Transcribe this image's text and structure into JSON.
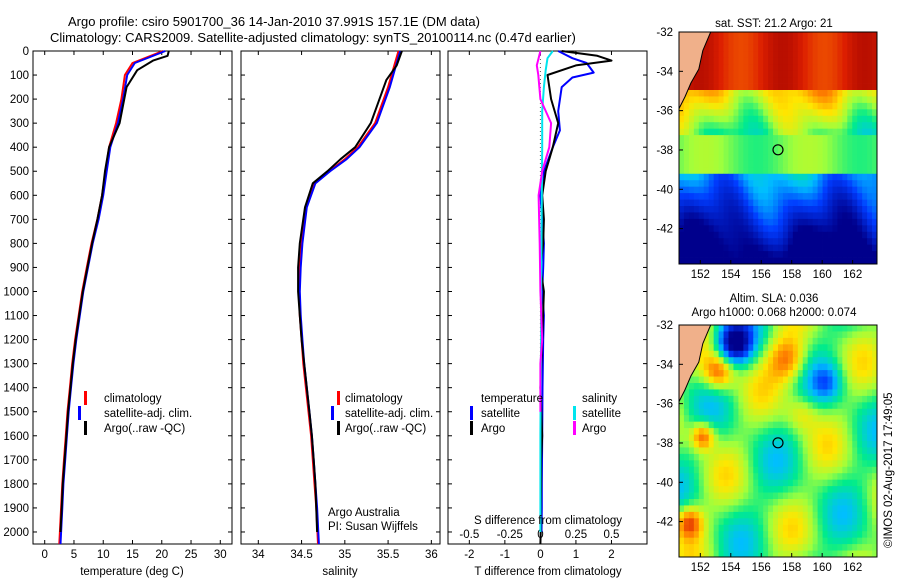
{
  "header": {
    "line1": "Argo profile: csiro 5901700_36 14-Jan-2010 37.991S 157.1E (DM data)",
    "line2": "Climatology: CARS2009. Satellite-adjusted climatology: synTS_20100114.nc (0.47d earlier)"
  },
  "colors": {
    "climatology": "#ff0000",
    "satellite": "#0000ff",
    "argo": "#000000",
    "argo_salinity": "#ff00ff",
    "satellite_salinity": "#00e5ee",
    "land": "#f0b08a"
  },
  "chart_data": [
    {
      "id": "temperature",
      "type": "line",
      "xlabel": "temperature (deg C)",
      "ylabel": "",
      "xlim": [
        -2,
        32
      ],
      "ylim": [
        2050,
        0
      ],
      "xticks": [
        0,
        5,
        10,
        15,
        20,
        25,
        30
      ],
      "yticks": [
        0,
        100,
        200,
        300,
        400,
        500,
        600,
        700,
        800,
        900,
        1000,
        1100,
        1200,
        1300,
        1400,
        1500,
        1600,
        1700,
        1800,
        1900,
        2000
      ],
      "legend": [
        "climatology",
        "satellite-adj. clim.",
        "Argo(..raw -QC)"
      ],
      "series": [
        {
          "name": "climatology",
          "color": "#ff0000",
          "x": [
            20.2,
            17.6,
            15.0,
            13.7,
            13.1,
            12.2,
            11.0,
            10.4,
            9.8,
            9.0,
            8.0,
            7.2,
            6.4,
            5.8,
            5.2,
            4.7,
            4.3,
            3.9,
            3.6,
            3.3,
            3.0,
            2.8,
            2.6,
            2.5
          ],
          "y": [
            0,
            25,
            50,
            100,
            200,
            300,
            400,
            500,
            600,
            700,
            800,
            900,
            1000,
            1100,
            1200,
            1300,
            1400,
            1500,
            1600,
            1700,
            1800,
            1900,
            2000,
            2050
          ]
        },
        {
          "name": "satellite-adj. clim.",
          "color": "#0000ff",
          "x": [
            20.6,
            18.0,
            15.4,
            14.1,
            13.4,
            12.5,
            11.2,
            10.6,
            10.0,
            9.2,
            8.2,
            7.4,
            6.6,
            6.0,
            5.4,
            4.9,
            4.5,
            4.1,
            3.8,
            3.5,
            3.2,
            3.0,
            2.8,
            2.7
          ],
          "y": [
            0,
            25,
            50,
            100,
            200,
            300,
            400,
            500,
            600,
            700,
            800,
            900,
            1000,
            1100,
            1200,
            1300,
            1400,
            1500,
            1600,
            1700,
            1800,
            1900,
            2000,
            2050
          ]
        },
        {
          "name": "Argo(..raw -QC)",
          "color": "#000000",
          "x": [
            21.2,
            21.0,
            18.5,
            15.8,
            14.0,
            12.8,
            11.0,
            10.3,
            9.8,
            9.0,
            8.1,
            7.3,
            6.5,
            5.9,
            5.3,
            4.8,
            4.4,
            4.0,
            3.7,
            3.4,
            3.1,
            2.9,
            2.7
          ],
          "y": [
            0,
            20,
            40,
            80,
            150,
            300,
            400,
            500,
            600,
            700,
            800,
            900,
            1000,
            1100,
            1200,
            1300,
            1400,
            1500,
            1600,
            1700,
            1800,
            1900,
            2000
          ]
        }
      ]
    },
    {
      "id": "salinity",
      "type": "line",
      "xlabel": "salinity",
      "ylabel": "",
      "xlim": [
        33.8,
        36.1
      ],
      "ylim": [
        2050,
        0
      ],
      "xticks": [
        34,
        34.5,
        35,
        35.5,
        36
      ],
      "legend": [
        "climatology",
        "satellite-adj. clim.",
        "Argo(..raw -QC)"
      ],
      "annotation": [
        "Argo Australia",
        "PI: Susan Wijffels"
      ],
      "series": [
        {
          "name": "climatology",
          "color": "#ff0000",
          "x": [
            35.62,
            35.58,
            35.5,
            35.35,
            35.15,
            35.0,
            34.82,
            34.65,
            34.55,
            34.5,
            34.48,
            34.47,
            34.48,
            34.5,
            34.52,
            34.55,
            34.58,
            34.61,
            34.63,
            34.65,
            34.67,
            34.69
          ],
          "y": [
            0,
            50,
            150,
            300,
            400,
            450,
            500,
            550,
            650,
            800,
            900,
            1000,
            1100,
            1200,
            1300,
            1400,
            1500,
            1600,
            1700,
            1800,
            1900,
            2050
          ]
        },
        {
          "name": "satellite-adj. clim.",
          "color": "#0000ff",
          "x": [
            35.64,
            35.6,
            35.52,
            35.37,
            35.17,
            35.02,
            34.83,
            34.66,
            34.56,
            34.51,
            34.49,
            34.48,
            34.49,
            34.51,
            34.53,
            34.56,
            34.59,
            34.62,
            34.64,
            34.66,
            34.68,
            34.7
          ],
          "y": [
            0,
            50,
            150,
            300,
            400,
            450,
            500,
            550,
            650,
            800,
            900,
            1000,
            1100,
            1200,
            1300,
            1400,
            1500,
            1600,
            1700,
            1800,
            1900,
            2050
          ]
        },
        {
          "name": "Argo(..raw -QC)",
          "color": "#000000",
          "x": [
            35.66,
            35.6,
            35.48,
            35.42,
            35.3,
            35.12,
            34.95,
            34.8,
            34.63,
            34.54,
            34.48,
            34.46,
            34.46,
            34.48,
            34.5,
            34.53,
            34.56,
            34.59,
            34.62,
            34.64,
            34.66,
            34.68
          ],
          "y": [
            0,
            60,
            120,
            180,
            300,
            400,
            450,
            500,
            550,
            650,
            800,
            900,
            1000,
            1100,
            1200,
            1300,
            1400,
            1500,
            1600,
            1700,
            1800,
            2000
          ]
        }
      ]
    },
    {
      "id": "difference",
      "type": "line",
      "xlabel": "T difference from climatology",
      "xlabel_top": "S difference from climatology",
      "xlim": [
        -2.6,
        3.0
      ],
      "ylim": [
        2050,
        0
      ],
      "xticks": [
        -2,
        -1,
        0,
        1,
        2
      ],
      "sticks": [
        "-0.5",
        "-0.25",
        "0",
        "0.25",
        "0.5"
      ],
      "legend_left_title": "temperature",
      "legend_right_title": "salinity",
      "legend_left": [
        "satellite",
        "Argo"
      ],
      "legend_right": [
        "satellite",
        "Argo"
      ],
      "series": [
        {
          "name": "satellite",
          "group": "temperature",
          "color": "#0000ff",
          "x": [
            0.5,
            0.7,
            0.9,
            1.3,
            1.5,
            0.9,
            0.6,
            0.5,
            0.55,
            0.35,
            0.1,
            0.0,
            0.05,
            0.1,
            0.08,
            0.05,
            0.1,
            0.08,
            0.06,
            0.05,
            0.04,
            0.04,
            0.03
          ],
          "y": [
            0,
            15,
            30,
            50,
            90,
            110,
            150,
            250,
            330,
            400,
            500,
            600,
            700,
            800,
            900,
            1000,
            1100,
            1200,
            1400,
            1600,
            1800,
            1900,
            2000
          ]
        },
        {
          "name": "Argo",
          "group": "temperature",
          "color": "#000000",
          "x": [
            0.6,
            1.6,
            2.0,
            1.0,
            0.2,
            0.3,
            0.5,
            0.35,
            0.15,
            0.05,
            0.1,
            0.08,
            0.0,
            0.1,
            0.05,
            0.0,
            0.05,
            0.02,
            0.02,
            0.01,
            0.01,
            0.0
          ],
          "y": [
            0,
            20,
            40,
            60,
            100,
            200,
            300,
            400,
            500,
            600,
            700,
            800,
            900,
            1000,
            1200,
            1400,
            1600,
            1700,
            1800,
            1900,
            2000,
            2050
          ]
        },
        {
          "name": "satellite",
          "group": "salinity",
          "color": "#00e5ee",
          "x": [
            0.35,
            0.2,
            0.15,
            0.1,
            0.05,
            0.05,
            0.04,
            0.03,
            0.02,
            0.02,
            0.01,
            0.0,
            0.0,
            0.0,
            0.0,
            0.0
          ],
          "y": [
            0,
            30,
            80,
            150,
            250,
            400,
            600,
            800,
            1000,
            1200,
            1400,
            1600,
            1700,
            1800,
            1900,
            2000
          ]
        },
        {
          "name": "Argo",
          "group": "salinity",
          "color": "#ff00ff",
          "x": [
            0.0,
            -0.05,
            -0.1,
            -0.06,
            0.0,
            0.3,
            0.25,
            0.05,
            -0.05,
            -0.02,
            0.0,
            0.05,
            0.0,
            0.0,
            0.0
          ],
          "y": [
            0,
            30,
            60,
            100,
            200,
            300,
            400,
            500,
            600,
            800,
            1000,
            1200,
            1300,
            1400,
            1500
          ]
        }
      ]
    },
    {
      "id": "sst_map",
      "type": "heatmap",
      "title": "sat. SST: 21.2 Argo: 21",
      "xlim": [
        150.6,
        163.6
      ],
      "ylim": [
        -43.8,
        -32
      ],
      "xticks": [
        152,
        154,
        156,
        158,
        160,
        162
      ],
      "yticks": [
        -32,
        -34,
        -36,
        -38,
        -40,
        -42
      ],
      "float_position": {
        "lon": 157.1,
        "lat": -37.991
      }
    },
    {
      "id": "sla_map",
      "type": "heatmap",
      "title": "Altim. SLA: 0.036",
      "subtitle": "Argo h1000: 0.068 h2000: 0.074",
      "xlim": [
        150.6,
        163.6
      ],
      "ylim": [
        -43.8,
        -32
      ],
      "xticks": [
        152,
        154,
        156,
        158,
        160,
        162
      ],
      "yticks": [
        -32,
        -34,
        -36,
        -38,
        -40,
        -42
      ],
      "float_position": {
        "lon": 157.1,
        "lat": -37.991
      }
    }
  ],
  "footer": {
    "credit": "©IMOS 02-Aug-2017 17:49:05"
  }
}
